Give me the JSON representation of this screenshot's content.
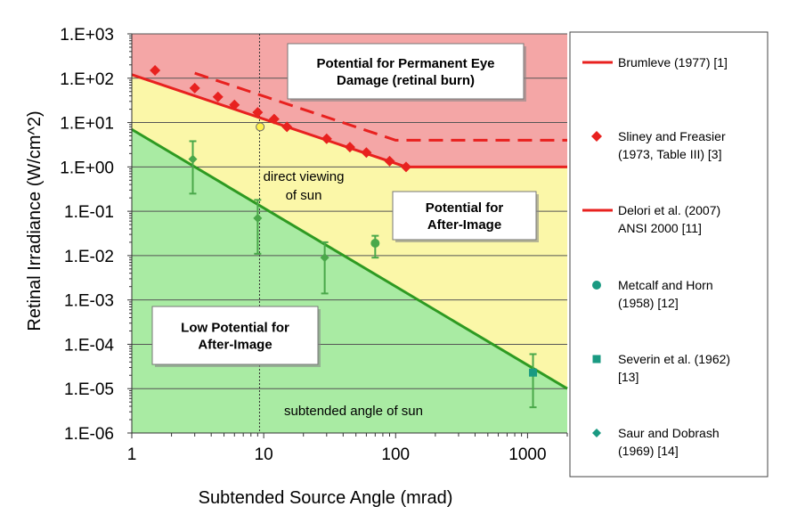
{
  "chart_data": {
    "type": "scatter",
    "xlabel": "Subtended Source Angle (mrad)",
    "ylabel": "Retinal Irradiance (W/cm^2)",
    "xscale": "log",
    "yscale": "log",
    "xlim": [
      1,
      2000
    ],
    "ylim": [
      1e-06,
      1000
    ],
    "x_ticks": [
      {
        "value": 1,
        "label": "1"
      },
      {
        "value": 10,
        "label": "10"
      },
      {
        "value": 100,
        "label": "100"
      },
      {
        "value": 1000,
        "label": "1000"
      }
    ],
    "y_ticks": [
      {
        "value": 1000,
        "label": "1.E+03"
      },
      {
        "value": 100,
        "label": "1.E+02"
      },
      {
        "value": 10,
        "label": "1.E+01"
      },
      {
        "value": 1,
        "label": "1.E+00"
      },
      {
        "value": 0.1,
        "label": "1.E-01"
      },
      {
        "value": 0.01,
        "label": "1.E-02"
      },
      {
        "value": 0.001,
        "label": "1.E-03"
      },
      {
        "value": 0.0001,
        "label": "1.E-04"
      },
      {
        "value": 1e-05,
        "label": "1.E-05"
      },
      {
        "value": 1e-06,
        "label": "1.E-06"
      }
    ],
    "grid": "horizontal",
    "legend_position": "right",
    "colors": {
      "red_zone": "#f4a6a6",
      "yellow_zone": "#fbf7a8",
      "green_zone": "#a9eba3",
      "red_line": "#e8211f",
      "green_line": "#2e9a22",
      "green_marker": "#4aa84a",
      "teal_marker": "#1a9a82",
      "red_marker": "#e8211f"
    },
    "regions": [
      {
        "name": "permanent-damage",
        "color": "#f4a6a6"
      },
      {
        "name": "after-image",
        "color": "#fbf7a8"
      },
      {
        "name": "low-potential",
        "color": "#a9eba3"
      }
    ],
    "series": [
      {
        "name": "Brumleve (1977) [1]",
        "kind": "line-solid",
        "color": "#e8211f",
        "x": [
          1,
          120,
          2000
        ],
        "y": [
          120,
          1,
          1
        ]
      },
      {
        "name": "Sliney and Freasier (1973, Table III) [3]",
        "kind": "diamond",
        "color": "#e8211f",
        "x": [
          1.5,
          3,
          4.5,
          6,
          9,
          12,
          15,
          30,
          45,
          60,
          90,
          120
        ],
        "y": [
          150,
          60,
          38,
          25,
          17,
          12,
          8,
          4.3,
          2.8,
          2.1,
          1.35,
          1.0
        ]
      },
      {
        "name": "Delori et al. (2007) ANSI 2000 [11]",
        "kind": "line-dashed",
        "color": "#e8211f",
        "x": [
          3,
          100,
          2000
        ],
        "y": [
          130,
          4,
          4
        ]
      },
      {
        "name": "Metcalf and Horn (1958) [12]",
        "kind": "circle",
        "color": "#4aa84a",
        "points": [
          {
            "x": 70,
            "y": 0.019,
            "low": 0.009,
            "high": 0.028
          }
        ]
      },
      {
        "name": "Severin et al. (1962) [13]",
        "kind": "square",
        "color": "#1a9a82",
        "points": [
          {
            "x": 1100,
            "y": 2.3e-05,
            "low": 3.8e-06,
            "high": 6e-05
          }
        ]
      },
      {
        "name": "Saur and Dobrash (1969) [14]",
        "kind": "diamond-small",
        "color": "#4aa84a",
        "points": [
          {
            "x": 2.9,
            "y": 1.5,
            "low": 0.25,
            "high": 3.8
          },
          {
            "x": 9,
            "y": 0.07,
            "low": 0.011,
            "high": 0.18
          },
          {
            "x": 29,
            "y": 0.009,
            "low": 0.0014,
            "high": 0.02
          }
        ]
      },
      {
        "kind": "line-green",
        "color": "#2e9a22",
        "x": [
          1,
          2000
        ],
        "y": [
          7,
          1e-05
        ]
      },
      {
        "kind": "marker-yellow",
        "color": "#fff04a",
        "x": [
          9.4
        ],
        "y": [
          8
        ]
      }
    ],
    "sun_angle_line": {
      "x": 9.3
    },
    "annotations": {
      "permanent_damage_line1": "Potential for Permanent Eye",
      "permanent_damage_line2": "Damage (retinal burn)",
      "after_image_line1": "Potential for",
      "after_image_line2": "After-Image",
      "low_potential_line1": "Low Potential for",
      "low_potential_line2": "After-Image",
      "direct_view_line1": "direct viewing",
      "direct_view_line2": "of sun",
      "subtended_angle": "subtended angle of sun"
    },
    "legend": [
      {
        "marker": "line",
        "label_lines": [
          "Brumleve (1977) [1]"
        ]
      },
      {
        "marker": "diamond",
        "label_lines": [
          "Sliney and Freasier",
          "(1973, Table III) [3]"
        ]
      },
      {
        "marker": "line",
        "label_lines": [
          "Delori et al. (2007)",
          "ANSI 2000 [11]"
        ]
      },
      {
        "marker": "circle",
        "label_lines": [
          "Metcalf and Horn",
          "(1958) [12]"
        ]
      },
      {
        "marker": "square",
        "label_lines": [
          "Severin et al. (1962)",
          "[13]"
        ]
      },
      {
        "marker": "diamond-teal",
        "label_lines": [
          "Saur and Dobrash",
          "(1969) [14]"
        ]
      }
    ]
  }
}
